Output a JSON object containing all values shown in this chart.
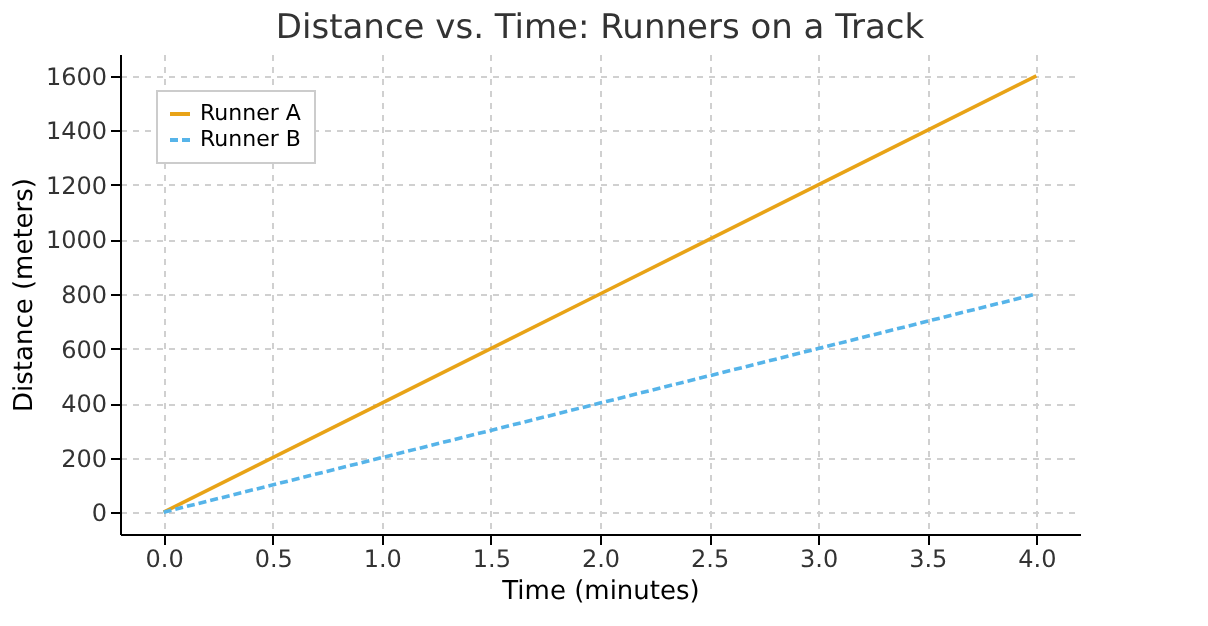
{
  "chart_data": {
    "type": "line",
    "title": "Distance vs. Time: Runners on a Track",
    "xlabel": "Time (minutes)",
    "ylabel": "Distance (meters)",
    "x": [
      0,
      1,
      2,
      3,
      4
    ],
    "series": [
      {
        "name": "Runner A",
        "color": "#e8a317",
        "line_style": "solid",
        "values": [
          0,
          400,
          800,
          1200,
          1600
        ]
      },
      {
        "name": "Runner B",
        "color": "#56b4e9",
        "line_style": "dashed",
        "values": [
          0,
          200,
          400,
          600,
          800
        ]
      }
    ],
    "xlim": [
      -0.2,
      4.2
    ],
    "xticks": [
      {
        "value": 0,
        "label": "0.0"
      },
      {
        "value": 0.5,
        "label": "0.5"
      },
      {
        "value": 1,
        "label": "1.0"
      },
      {
        "value": 1.5,
        "label": "1.5"
      },
      {
        "value": 2,
        "label": "2.0"
      },
      {
        "value": 2.5,
        "label": "2.5"
      },
      {
        "value": 3,
        "label": "3.0"
      },
      {
        "value": 3.5,
        "label": "3.5"
      },
      {
        "value": 4,
        "label": "4.0"
      }
    ],
    "ylim": [
      -80,
      1680
    ],
    "yticks": [
      0,
      200,
      400,
      600,
      800,
      1000,
      1200,
      1400,
      1600
    ],
    "grid": true,
    "legend": "top left"
  }
}
